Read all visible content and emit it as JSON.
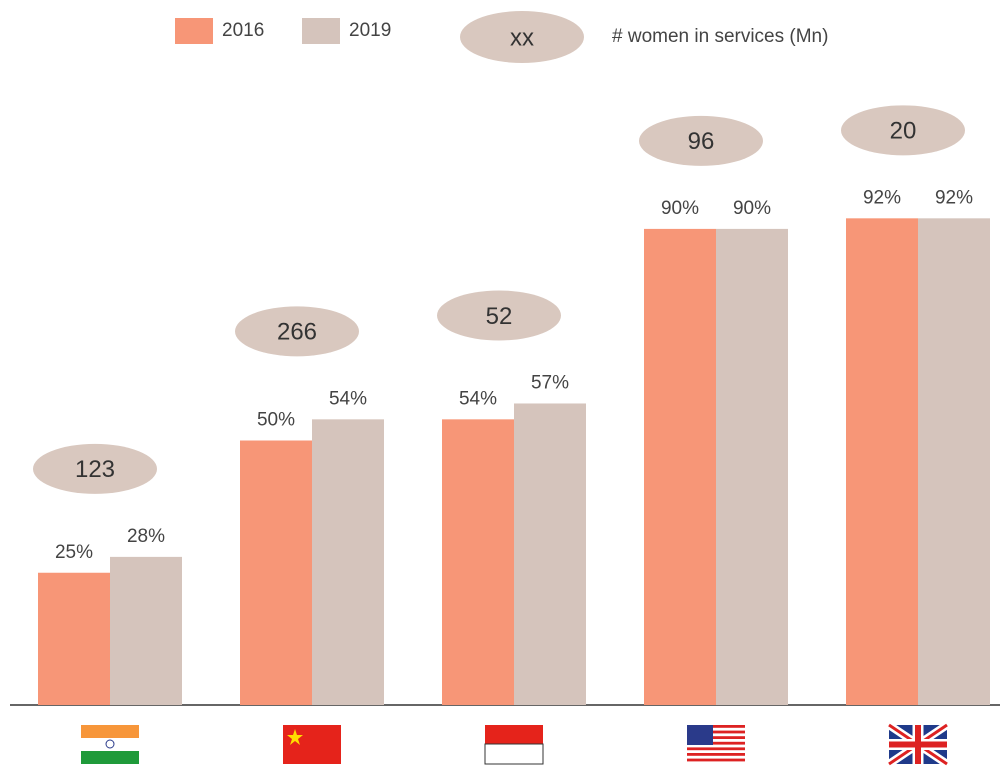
{
  "chart_data": {
    "type": "bar",
    "categories": [
      null,
      null,
      null,
      null,
      null
    ],
    "series": [
      {
        "name": "2016",
        "color": "#f79677",
        "values": [
          25,
          50,
          54,
          90,
          92
        ],
        "value_labels": [
          "25%",
          "50%",
          "54%",
          "90%",
          "92%"
        ]
      },
      {
        "name": "2019",
        "color": "#d5c4bc",
        "values": [
          28,
          54,
          57,
          90,
          92
        ],
        "value_labels": [
          "28%",
          "54%",
          "57%",
          "90%",
          "92%"
        ]
      }
    ],
    "bubbles": {
      "name": "# women in services (Mn)",
      "legend_symbol": "xx",
      "color": "#d9c8bf",
      "values": [
        123,
        266,
        52,
        96,
        20
      ]
    },
    "ylim": [
      0,
      100
    ]
  }
}
